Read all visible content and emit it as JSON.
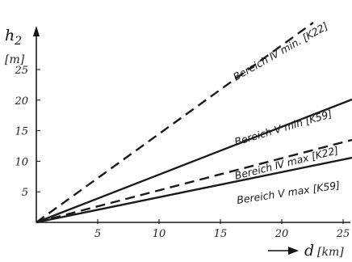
{
  "chart_data": {
    "type": "line",
    "ylabel": "h",
    "ylabel_sub": "2",
    "yunit": "[m]",
    "xlabel": "d",
    "xunit": "[km]",
    "xlim": [
      0,
      25
    ],
    "ylim": [
      0,
      30
    ],
    "xticks": [
      5,
      10,
      15,
      20,
      25
    ],
    "yticks": [
      5,
      10,
      15,
      20,
      25
    ],
    "grid": false,
    "series": [
      {
        "name": "Bereich Ⅳ min. [K22]",
        "style": "dashed",
        "x": [
          0,
          25
        ],
        "y": [
          0,
          32
        ]
      },
      {
        "name": "Bereich Ⅴ min [K59]",
        "style": "solid",
        "x": [
          0,
          25
        ],
        "y": [
          0,
          19.7
        ]
      },
      {
        "name": "Bereich Ⅳ max [K22]",
        "style": "dashed",
        "x": [
          0,
          25
        ],
        "y": [
          0,
          16.5
        ]
      },
      {
        "name": "Bereich Ⅴ max [K59]",
        "style": "solid",
        "x": [
          0,
          25
        ],
        "y": [
          0,
          10
        ]
      }
    ]
  }
}
